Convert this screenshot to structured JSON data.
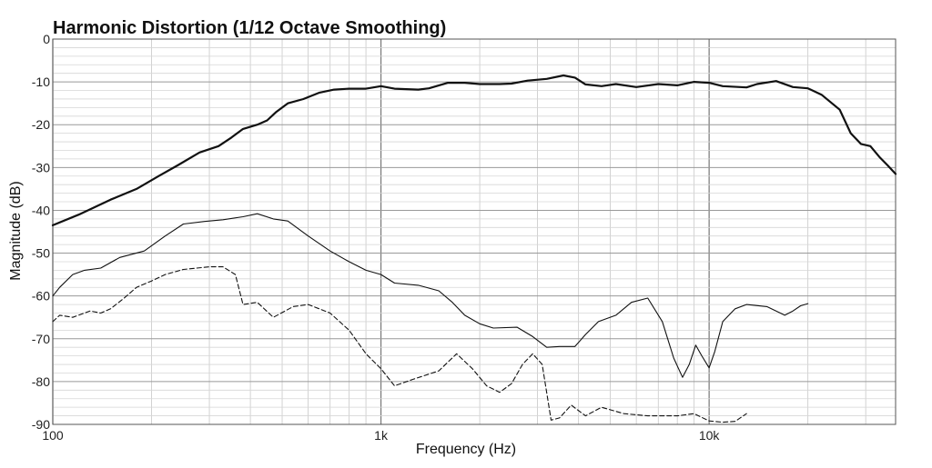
{
  "chart_data": {
    "type": "line",
    "title": "Harmonic Distortion (1/12 Octave Smoothing)",
    "xlabel": "Frequency (Hz)",
    "ylabel": "Magnitude (dB)",
    "xscale": "log",
    "xlim": [
      100,
      37000
    ],
    "ylim": [
      -90,
      0
    ],
    "x_ticks": [
      100,
      1000,
      10000
    ],
    "x_tick_labels": [
      "100",
      "1k",
      "10k"
    ],
    "y_ticks": [
      0,
      -10,
      -20,
      -30,
      -40,
      -50,
      -60,
      -70,
      -80,
      -90
    ],
    "y_tick_labels": [
      "0",
      "-10",
      "-20",
      "-30",
      "-40",
      "-50",
      "-60",
      "-70",
      "-80",
      "-90"
    ],
    "grid": true,
    "legend": "none",
    "series": [
      {
        "style": "thick-solid",
        "points": [
          [
            100,
            -43.5
          ],
          [
            120,
            -41
          ],
          [
            150,
            -37.5
          ],
          [
            180,
            -35
          ],
          [
            210,
            -32
          ],
          [
            240,
            -29.5
          ],
          [
            280,
            -26.5
          ],
          [
            320,
            -25
          ],
          [
            350,
            -23
          ],
          [
            380,
            -21
          ],
          [
            420,
            -20
          ],
          [
            450,
            -19
          ],
          [
            480,
            -17
          ],
          [
            520,
            -15
          ],
          [
            580,
            -14
          ],
          [
            650,
            -12.5
          ],
          [
            720,
            -11.8
          ],
          [
            800,
            -11.6
          ],
          [
            900,
            -11.6
          ],
          [
            1000,
            -11
          ],
          [
            1100,
            -11.6
          ],
          [
            1300,
            -11.8
          ],
          [
            1400,
            -11.5
          ],
          [
            1600,
            -10.2
          ],
          [
            1800,
            -10.2
          ],
          [
            2000,
            -10.5
          ],
          [
            2300,
            -10.5
          ],
          [
            2500,
            -10.4
          ],
          [
            2800,
            -9.7
          ],
          [
            3200,
            -9.3
          ],
          [
            3600,
            -8.5
          ],
          [
            3900,
            -9
          ],
          [
            4200,
            -10.6
          ],
          [
            4700,
            -11
          ],
          [
            5200,
            -10.5
          ],
          [
            6000,
            -11.2
          ],
          [
            7000,
            -10.5
          ],
          [
            8000,
            -10.8
          ],
          [
            9000,
            -10
          ],
          [
            10000,
            -10.2
          ],
          [
            11000,
            -11
          ],
          [
            13000,
            -11.3
          ],
          [
            14000,
            -10.5
          ],
          [
            16000,
            -9.8
          ],
          [
            18000,
            -11.2
          ],
          [
            20000,
            -11.5
          ],
          [
            22000,
            -13
          ],
          [
            25000,
            -16.5
          ],
          [
            27000,
            -22
          ],
          [
            29000,
            -24.5
          ],
          [
            31000,
            -25
          ],
          [
            33000,
            -27.5
          ],
          [
            35000,
            -29.5
          ],
          [
            37000,
            -31.5
          ]
        ]
      },
      {
        "style": "thin-solid",
        "points": [
          [
            100,
            -60
          ],
          [
            105,
            -58
          ],
          [
            115,
            -55
          ],
          [
            125,
            -54
          ],
          [
            140,
            -53.5
          ],
          [
            160,
            -51
          ],
          [
            190,
            -49.5
          ],
          [
            220,
            -46
          ],
          [
            250,
            -43.2
          ],
          [
            290,
            -42.6
          ],
          [
            330,
            -42.2
          ],
          [
            380,
            -41.5
          ],
          [
            420,
            -40.8
          ],
          [
            470,
            -42
          ],
          [
            520,
            -42.5
          ],
          [
            600,
            -46
          ],
          [
            700,
            -49.5
          ],
          [
            800,
            -52
          ],
          [
            900,
            -54
          ],
          [
            1000,
            -55
          ],
          [
            1100,
            -57
          ],
          [
            1300,
            -57.5
          ],
          [
            1500,
            -58.8
          ],
          [
            1650,
            -61.5
          ],
          [
            1800,
            -64.5
          ],
          [
            2000,
            -66.5
          ],
          [
            2200,
            -67.5
          ],
          [
            2600,
            -67.3
          ],
          [
            2900,
            -69.5
          ],
          [
            3200,
            -72
          ],
          [
            3500,
            -71.8
          ],
          [
            3900,
            -71.8
          ],
          [
            4200,
            -69
          ],
          [
            4600,
            -66
          ],
          [
            5200,
            -64.5
          ],
          [
            5800,
            -61.5
          ],
          [
            6500,
            -60.5
          ],
          [
            7200,
            -66
          ],
          [
            7800,
            -74.5
          ],
          [
            8300,
            -79
          ],
          [
            8700,
            -76
          ],
          [
            9100,
            -71.5
          ],
          [
            9500,
            -74
          ],
          [
            10000,
            -76.8
          ],
          [
            10400,
            -73
          ],
          [
            11000,
            -66
          ],
          [
            12000,
            -63
          ],
          [
            13000,
            -62
          ],
          [
            15000,
            -62.5
          ],
          [
            16000,
            -63.5
          ],
          [
            17000,
            -64.5
          ],
          [
            18000,
            -63.5
          ],
          [
            19000,
            -62.3
          ],
          [
            20000,
            -61.8
          ]
        ]
      },
      {
        "style": "dashed",
        "points": [
          [
            100,
            -66
          ],
          [
            105,
            -64.5
          ],
          [
            115,
            -65
          ],
          [
            130,
            -63.5
          ],
          [
            140,
            -64
          ],
          [
            150,
            -63
          ],
          [
            165,
            -60.5
          ],
          [
            180,
            -58
          ],
          [
            200,
            -56.5
          ],
          [
            220,
            -55
          ],
          [
            250,
            -53.8
          ],
          [
            300,
            -53.2
          ],
          [
            330,
            -53.2
          ],
          [
            360,
            -55
          ],
          [
            380,
            -62
          ],
          [
            420,
            -61.5
          ],
          [
            470,
            -65
          ],
          [
            540,
            -62.5
          ],
          [
            600,
            -62
          ],
          [
            700,
            -64
          ],
          [
            800,
            -68
          ],
          [
            900,
            -73.5
          ],
          [
            1000,
            -77
          ],
          [
            1100,
            -81
          ],
          [
            1250,
            -79.5
          ],
          [
            1500,
            -77.5
          ],
          [
            1700,
            -73.5
          ],
          [
            1900,
            -77
          ],
          [
            2100,
            -81
          ],
          [
            2300,
            -82.5
          ],
          [
            2500,
            -80.5
          ],
          [
            2700,
            -76
          ],
          [
            2900,
            -73.5
          ],
          [
            3100,
            -76
          ],
          [
            3300,
            -89
          ],
          [
            3500,
            -88.5
          ],
          [
            3800,
            -85.5
          ],
          [
            4200,
            -88
          ],
          [
            4700,
            -86
          ],
          [
            5500,
            -87.5
          ],
          [
            6500,
            -88
          ],
          [
            8000,
            -88
          ],
          [
            9000,
            -87.5
          ],
          [
            10000,
            -89.2
          ],
          [
            11000,
            -89.5
          ],
          [
            12000,
            -89.3
          ],
          [
            13000,
            -87.5
          ]
        ]
      }
    ]
  }
}
